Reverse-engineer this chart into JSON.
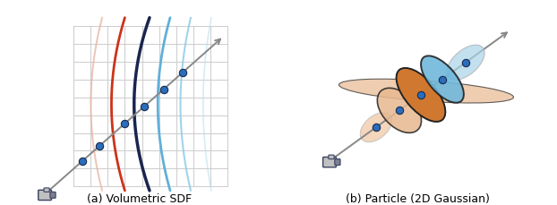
{
  "fig_width": 6.22,
  "fig_height": 2.3,
  "dpi": 100,
  "background": "#ffffff",
  "caption_left": "(a) Volumetric SDF",
  "caption_right": "(b) Particle (2D Gaussian)",
  "caption_fontsize": 9,
  "grid_color": "#cccccc",
  "ray_color": "#888888",
  "dot_color": "#2A6EBB",
  "dot_edge": "#1a2a50",
  "curve_colors": [
    "#e8b0a0",
    "#cc3318",
    "#1a2550",
    "#60b0d8",
    "#90cce8",
    "#b8dff0"
  ],
  "camera_body": "#c0c0c0",
  "camera_dark": "#7a8090",
  "camera_edge": "#3a4060",
  "ellipse_orange": "#d07830",
  "ellipse_orange_light": "#e8b890",
  "ellipse_orange_xlight": "#f0ccaa",
  "ellipse_blue": "#70b8dc",
  "ellipse_blue_light": "#a8d4e8",
  "ellipse_edge": "#222222"
}
